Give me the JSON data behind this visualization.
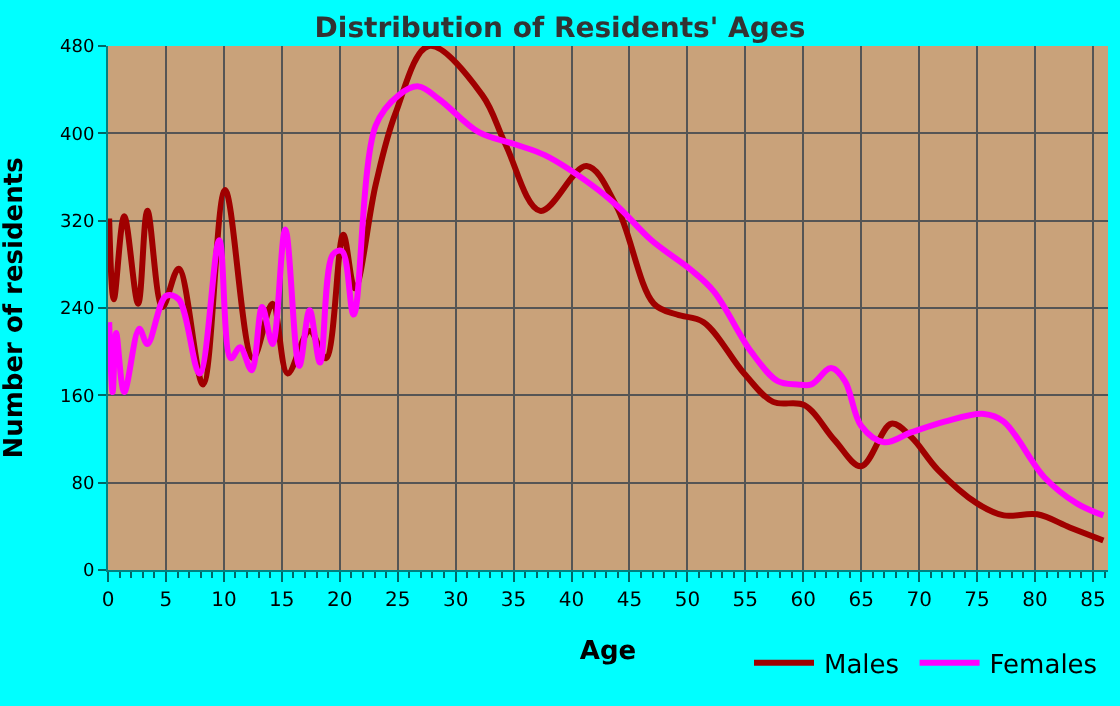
{
  "chart_data": {
    "type": "line",
    "title": "Distribution of Residents' Ages",
    "xlabel": "Age",
    "ylabel": "Number of residents",
    "xlim": [
      0,
      86.3
    ],
    "xticks": [
      0,
      5,
      10,
      15,
      20,
      25,
      30,
      35,
      40,
      45,
      50,
      55,
      60,
      65,
      70,
      75,
      80,
      85
    ],
    "ylim": [
      0,
      480
    ],
    "yticks": [
      0,
      80,
      160,
      240,
      320,
      400,
      480
    ],
    "grid": true,
    "legend": "bottom right",
    "marker": "none",
    "line_style": "solid",
    "series": [
      {
        "name": "Males",
        "color": "#a00000",
        "x": [
          0.1,
          0.5,
          1.4,
          2.6,
          3.4,
          4.7,
          6.1,
          8.2,
          10.1,
          12.5,
          14.2,
          15.5,
          17.4,
          18.8,
          20.3,
          21.3,
          23.1,
          24.8,
          27.7,
          32.3,
          34.3,
          37.3,
          41.3,
          43.9,
          47.1,
          49.1,
          51.4,
          54.9,
          57.4,
          60.1,
          62.7,
          65,
          67.6,
          69.3,
          71.6,
          75,
          77.3,
          80.2,
          83,
          85.9
        ],
        "values": [
          322,
          248,
          324,
          244,
          329,
          241,
          276,
          170,
          348,
          194,
          244,
          180,
          219,
          194,
          307,
          258,
          353,
          418,
          480,
          435,
          390,
          329,
          370,
          333,
          244,
          234,
          227,
          180,
          154,
          151,
          119,
          95,
          134,
          122,
          92,
          61,
          50,
          51,
          39,
          27
        ]
      },
      {
        "name": "Females",
        "color": "#ff00ff",
        "x": [
          0.1,
          0.4,
          0.7,
          1.4,
          2.7,
          3.4,
          5,
          6.1,
          7.9,
          9.6,
          10.6,
          11.4,
          12.4,
          13.3,
          14.2,
          15.3,
          16.5,
          17.4,
          18.3,
          19.4,
          20.2,
          21.2,
          23.1,
          25.1,
          26.8,
          28.6,
          32,
          35.1,
          37.7,
          41.7,
          44,
          46.9,
          50.3,
          52.3,
          55.5,
          57.8,
          59.5,
          60.7,
          62.4,
          63.6,
          65,
          67,
          69.3,
          72.2,
          75.6,
          77.3,
          80.8,
          83.6,
          85.9
        ],
        "values": [
          227,
          163,
          217,
          163,
          221,
          207,
          251,
          248,
          180,
          302,
          194,
          204,
          183,
          241,
          207,
          312,
          187,
          238,
          190,
          289,
          292,
          234,
          407,
          435,
          443,
          431,
          401,
          390,
          380,
          353,
          333,
          302,
          275,
          255,
          200,
          173,
          170,
          170,
          185,
          173,
          132,
          117,
          126,
          136,
          143,
          136,
          85,
          61,
          50
        ]
      }
    ]
  }
}
